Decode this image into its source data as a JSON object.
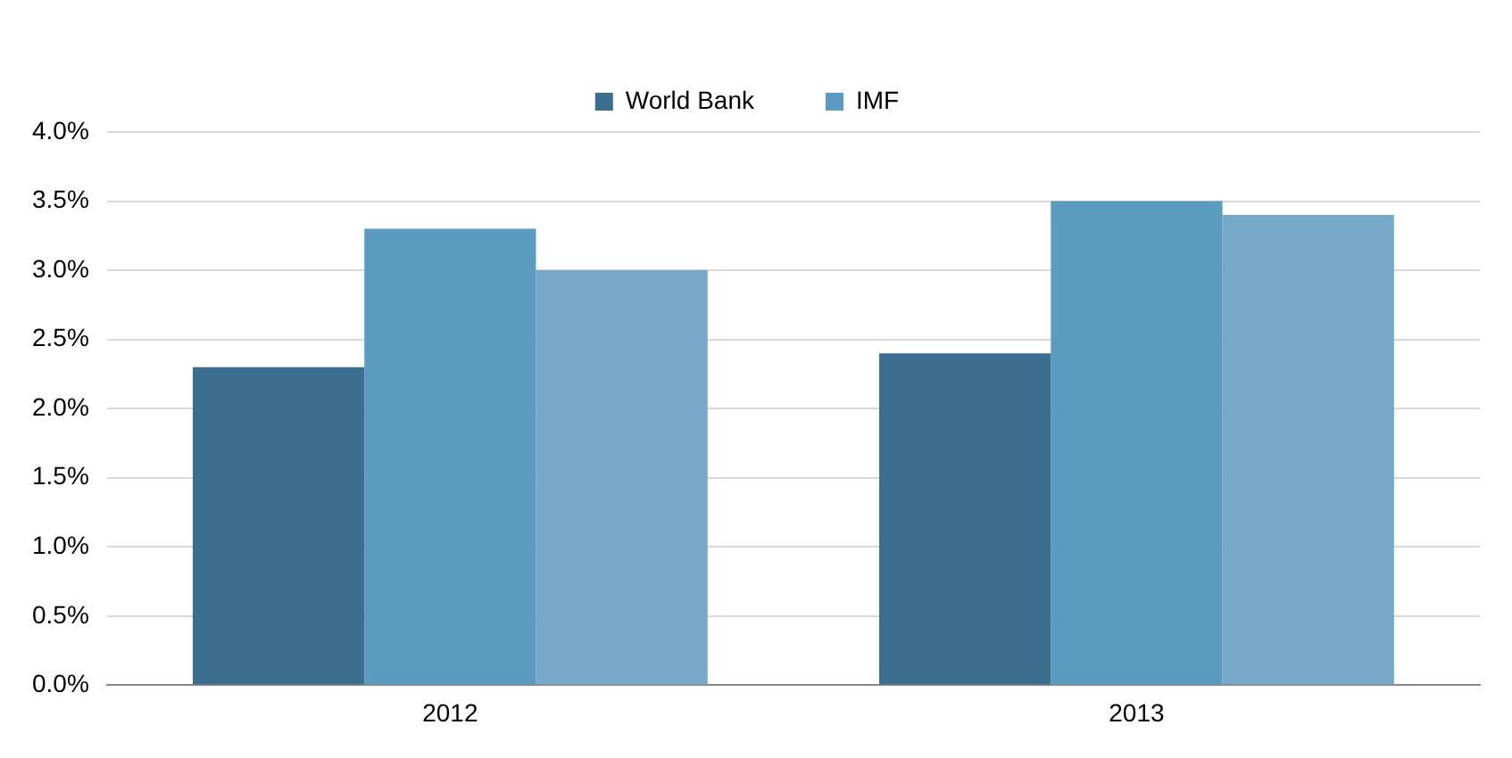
{
  "chart_data": {
    "type": "bar",
    "categories": [
      "2012",
      "2013"
    ],
    "series": [
      {
        "name": "World Bank",
        "color": "#3b6e8f",
        "values": [
          2.3,
          2.4
        ]
      },
      {
        "name": "IMF",
        "color": "#5b9bbf",
        "values": [
          3.3,
          3.5
        ]
      },
      {
        "color": "#76a9c9",
        "values": [
          3.0,
          3.4
        ]
      }
    ],
    "ylim": [
      0,
      4
    ],
    "yticks": [
      {
        "value": 0,
        "label": "0.0%"
      },
      {
        "value": 0.5,
        "label": "0.5%"
      },
      {
        "value": 1,
        "label": "1.0%"
      },
      {
        "value": 1.5,
        "label": "1.5%"
      },
      {
        "value": 2,
        "label": "2.0%"
      },
      {
        "value": 2.5,
        "label": "2.5%"
      },
      {
        "value": 3,
        "label": "3.0%"
      },
      {
        "value": 3.5,
        "label": "3.5%"
      },
      {
        "value": 4,
        "label": "4.0%"
      }
    ],
    "grid": "y",
    "legend": "top"
  }
}
